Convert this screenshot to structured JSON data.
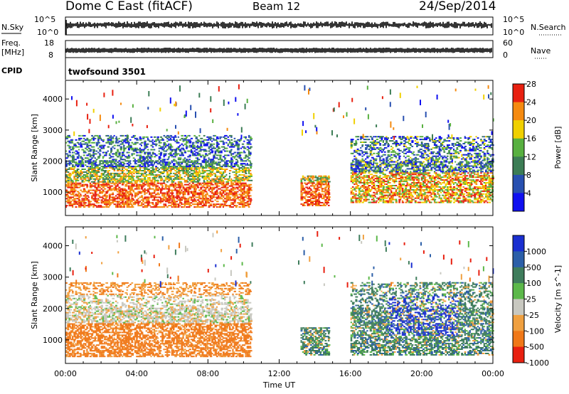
{
  "header": {
    "station": "Dome C East (fitACF)",
    "beam": "Beam 12",
    "date": "24/Sep/2014"
  },
  "top_panels": {
    "nsky": {
      "label": "N.Sky",
      "tick_top": "10^5",
      "tick_bottom": "10^0"
    },
    "nsearch": {
      "label": "N.Search",
      "tick_top": "10^5",
      "tick_bottom": "10^0"
    },
    "freq": {
      "label_line1": "Freq.",
      "label_line2": "[MHz]",
      "tick_top": "18",
      "tick_bottom": "8"
    },
    "nave": {
      "label": "Nave",
      "tick_top": "60",
      "tick_bottom": "0"
    },
    "cpid": {
      "label": "CPID",
      "value": "twofsound 3501"
    }
  },
  "chart_data": [
    {
      "type": "heatmap",
      "title": "",
      "xlabel": "Time UT",
      "ylabel": "Slant Range [km]",
      "x_ticks": [
        "00:00",
        "04:00",
        "08:00",
        "12:00",
        "16:00",
        "20:00",
        "00:00"
      ],
      "y_ticks": [
        "1000",
        "2000",
        "3000",
        "4000"
      ],
      "ylim": [
        250,
        4600
      ],
      "colorbar": {
        "label": "Power [dB]",
        "tick_labels": [
          "4",
          "8",
          "12",
          "16",
          "20",
          "24",
          "28"
        ],
        "colors": [
          "#1010f0",
          "#2850b0",
          "#3c7d55",
          "#58b040",
          "#f0d000",
          "#f58a10",
          "#e82010"
        ]
      },
      "echo_regions": [
        {
          "t_start": 0.0,
          "t_end": 10.4,
          "range_min": 500,
          "range_max": 2800,
          "dominant": "mixed"
        },
        {
          "t_start": 13.2,
          "t_end": 14.8,
          "range_min": 550,
          "range_max": 1500,
          "dominant": "mixed"
        },
        {
          "t_start": 16.0,
          "t_end": 24.0,
          "range_min": 650,
          "range_max": 2800,
          "dominant": "mixed"
        }
      ]
    },
    {
      "type": "heatmap",
      "title": "",
      "xlabel": "Time UT",
      "ylabel": "Slant Range [km]",
      "x_ticks": [
        "00:00",
        "04:00",
        "08:00",
        "12:00",
        "16:00",
        "20:00",
        "00:00"
      ],
      "y_ticks": [
        "1000",
        "2000",
        "3000",
        "4000"
      ],
      "ylim": [
        250,
        4600
      ],
      "colorbar": {
        "label": "Velocity [m s^-1]",
        "tick_labels": [
          "1000",
          "500",
          "100",
          "25",
          "-25",
          "-100",
          "-500",
          "-1000"
        ],
        "colors": [
          "#1a2fd0",
          "#2c5fa8",
          "#3f7d5c",
          "#5cb84a",
          "#c8c8c0",
          "#f0a040",
          "#f07818",
          "#e82010"
        ]
      },
      "echo_regions": [
        {
          "t_start": 0.0,
          "t_end": 10.4,
          "range_min": 450,
          "range_max": 2800,
          "dominant": "orange"
        },
        {
          "t_start": 13.2,
          "t_end": 14.8,
          "range_min": 500,
          "range_max": 1400,
          "dominant": "teal"
        },
        {
          "t_start": 16.0,
          "t_end": 24.0,
          "range_min": 500,
          "range_max": 2800,
          "dominant": "blue-teal"
        }
      ]
    }
  ]
}
